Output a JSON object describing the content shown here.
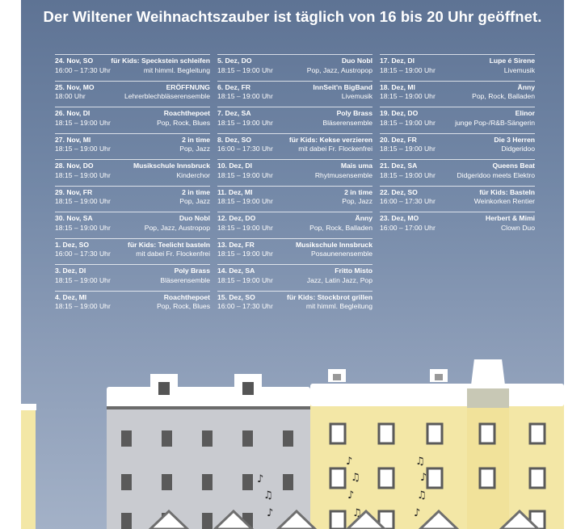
{
  "headline": "Der Wiltener Weihnachtszauber ist täglich von 16 bis 20 Uhr geöffnet.",
  "columns": [
    [
      {
        "date": "24. Nov, SO",
        "time": "16:00 – 17:30 Uhr",
        "title": "für Kids: Speckstein schleifen",
        "sub": "mit himml. Begleitung"
      },
      {
        "date": "25. Nov, MO",
        "time": "18:00 Uhr",
        "title": "ERÖFFNUNG",
        "sub": "Lehrerblechbläserensemble"
      },
      {
        "date": "26. Nov, DI",
        "time": "18:15 – 19:00 Uhr",
        "title": "Roachthepoet",
        "sub": "Pop, Rock, Blues"
      },
      {
        "date": "27. Nov, MI",
        "time": "18:15 – 19:00 Uhr",
        "title": "2 in time",
        "sub": "Pop, Jazz"
      },
      {
        "date": "28. Nov, DO",
        "time": "18:15 – 19:00 Uhr",
        "title": "Musikschule Innsbruck",
        "sub": "Kinderchor"
      },
      {
        "date": "29. Nov, FR",
        "time": "18:15 – 19:00 Uhr",
        "title": "2 in time",
        "sub": "Pop, Jazz"
      },
      {
        "date": "30. Nov, SA",
        "time": "18:15 – 19:00 Uhr",
        "title": "Duo Nobl",
        "sub": "Pop, Jazz, Austropop"
      },
      {
        "date": "1. Dez, SO",
        "time": "16:00 – 17:30 Uhr",
        "title": "für Kids: Teelicht basteln",
        "sub": "mit dabei Fr. Flockenfrei"
      },
      {
        "date": "3. Dez, DI",
        "time": "18:15 – 19:00 Uhr",
        "title": "Poly Brass",
        "sub": "Bläserensemble"
      },
      {
        "date": "4. Dez, MI",
        "time": "18:15 – 19:00 Uhr",
        "title": "Roachthepoet",
        "sub": "Pop, Rock, Blues"
      }
    ],
    [
      {
        "date": "5. Dez, DO",
        "time": "18:15 – 19:00 Uhr",
        "title": "Duo Nobl",
        "sub": "Pop, Jazz, Austropop"
      },
      {
        "date": "6. Dez, FR",
        "time": "18:15 – 19:00 Uhr",
        "title": "InnSeit'n BigBand",
        "sub": "Livemusik"
      },
      {
        "date": "7. Dez, SA",
        "time": "18:15 – 19:00 Uhr",
        "title": "Poly Brass",
        "sub": "Bläserensemble"
      },
      {
        "date": "8. Dez, SO",
        "time": "16:00 – 17:30 Uhr",
        "title": "für Kids: Kekse verzieren",
        "sub": "mit dabei Fr. Flockenfrei"
      },
      {
        "date": "10. Dez, DI",
        "time": "18:15 – 19:00 Uhr",
        "title": "Mais uma",
        "sub": "Rhytmusensemble"
      },
      {
        "date": "11. Dez, MI",
        "time": "18:15 – 19:00 Uhr",
        "title": "2 in time",
        "sub": "Pop, Jazz"
      },
      {
        "date": "12. Dez, DO",
        "time": "18:15 – 19:00 Uhr",
        "title": "Änny",
        "sub": "Pop, Rock, Balladen"
      },
      {
        "date": "13. Dez, FR",
        "time": "18:15 – 19:00 Uhr",
        "title": "Musikschule Innsbruck",
        "sub": "Posaunenensemble"
      },
      {
        "date": "14. Dez, SA",
        "time": "18:15 – 19:00 Uhr",
        "title": "Fritto Misto",
        "sub": "Jazz, Latin Jazz, Pop"
      },
      {
        "date": "15. Dez, SO",
        "time": "16:00 – 17:30 Uhr",
        "title": "für Kids: Stockbrot grillen",
        "sub": "mit himml. Begleitung"
      }
    ],
    [
      {
        "date": "17. Dez, DI",
        "time": "18:15 – 19:00 Uhr",
        "title": "Lupe é Sirene",
        "sub": "Livemusik"
      },
      {
        "date": "18. Dez, MI",
        "time": "18:15 – 19:00 Uhr",
        "title": "Änny",
        "sub": "Pop, Rock, Balladen"
      },
      {
        "date": "19. Dez, DO",
        "time": "18:15 – 19:00 Uhr",
        "title": "Elinor",
        "sub": "junge Pop-/R&B-Sängerin"
      },
      {
        "date": "20. Dez, FR",
        "time": "18:15 – 19:00 Uhr",
        "title": "Die 3 Herren",
        "sub": "Didgeridoo"
      },
      {
        "date": "21. Dez, SA",
        "time": "18:15 – 19:00 Uhr",
        "title": "Queens Beat",
        "sub": "Didgeridoo meets Elektro"
      },
      {
        "date": "22. Dez, SO",
        "time": "16:00 – 17:30 Uhr",
        "title": "für Kids: Basteln",
        "sub": "Weinkorken Rentier"
      },
      {
        "date": "23. Dez, MO",
        "time": "16:00 – 17:00 Uhr",
        "title": "Herbert & Mimi",
        "sub": "Clown Duo"
      }
    ]
  ],
  "colors": {
    "sky_top": "#5e7394",
    "sky_bottom": "#a3b1c7",
    "building_gray": "#c9cbd0",
    "building_yellow": "#f3e7a6",
    "window": "#5a5a5a",
    "snow": "#ffffff"
  }
}
